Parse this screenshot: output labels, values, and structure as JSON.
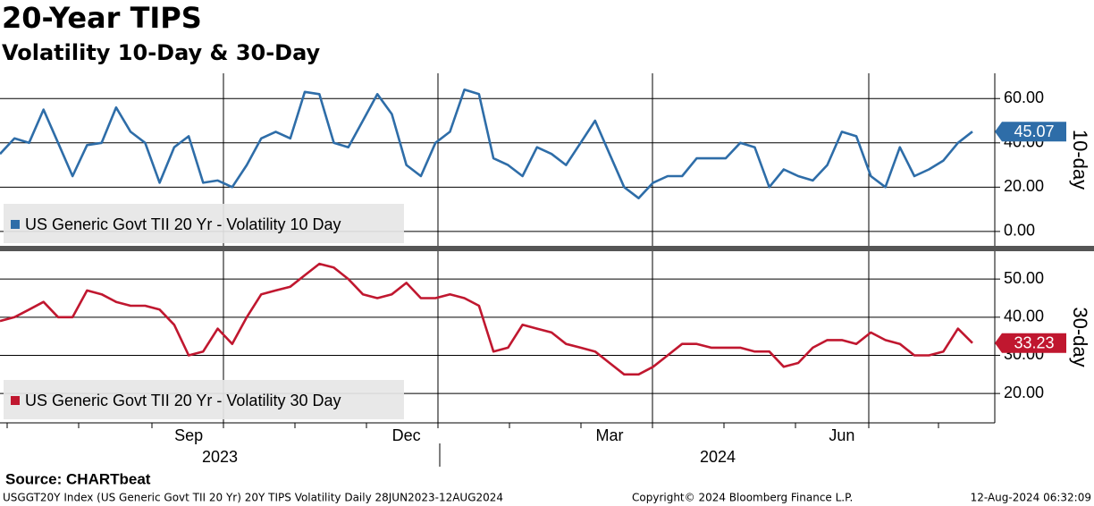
{
  "header": {
    "title": "20-Year TIPS",
    "subtitle": "Volatility 10-Day & 30-Day"
  },
  "chart_data": [
    {
      "type": "line",
      "y_label": "10-day",
      "series": [
        {
          "name": "US Generic Govt TII 20 Yr - Volatility 10 Day",
          "color": "#2e6da8",
          "values": [
            35,
            42,
            40,
            55,
            40,
            25,
            39,
            40,
            56,
            45,
            40,
            22,
            38,
            43,
            22,
            23,
            20,
            30,
            42,
            45,
            42,
            63,
            62,
            40,
            38,
            50,
            62,
            53,
            30,
            25,
            40,
            45,
            64,
            62,
            33,
            30,
            25,
            38,
            35,
            30,
            40,
            50,
            35,
            20,
            15,
            22,
            25,
            25,
            33,
            33,
            33,
            40,
            38,
            20,
            28,
            25,
            23,
            30,
            45,
            43,
            25,
            20,
            38,
            25,
            28,
            32,
            40,
            45.07
          ]
        }
      ],
      "ylim": [
        -6.5,
        71.4
      ],
      "yticks": [
        {
          "value": 0,
          "label": "0.00"
        },
        {
          "value": 20,
          "label": "20.00"
        },
        {
          "value": 40,
          "label": "40.00"
        },
        {
          "value": 60,
          "label": "60.00"
        }
      ],
      "grid": true
    },
    {
      "type": "line",
      "y_label": "30-day",
      "series": [
        {
          "name": "US Generic Govt TII 20 Yr - Volatility 30 Day",
          "color": "#c0172f",
          "values": [
            39,
            40,
            42,
            44,
            40,
            40,
            47,
            46,
            44,
            43,
            43,
            42,
            38,
            30,
            31,
            37,
            33,
            40,
            46,
            47,
            48,
            51,
            54,
            53,
            50,
            46,
            45,
            46,
            49,
            45,
            45,
            46,
            45,
            43,
            31,
            32,
            38,
            37,
            36,
            33,
            32,
            31,
            28,
            25,
            25,
            27,
            30,
            33,
            33,
            32,
            32,
            32,
            31,
            31,
            27,
            28,
            32,
            34,
            34,
            33,
            36,
            34,
            33,
            30,
            30,
            31,
            37,
            33.23
          ]
        }
      ],
      "ylim": [
        12.3,
        57.3
      ],
      "yticks": [
        {
          "value": 20,
          "label": "20.00"
        },
        {
          "value": 30,
          "label": "30.00"
        },
        {
          "value": 40,
          "label": "40.00"
        },
        {
          "value": 50,
          "label": "50.00"
        }
      ],
      "grid": true,
      "categories": [
        null,
        null,
        null,
        null,
        null,
        null,
        null,
        null,
        null,
        null,
        null,
        null,
        null,
        "Sep",
        null,
        null,
        null,
        null,
        null,
        null,
        null,
        null,
        null,
        null,
        null,
        null,
        null,
        null,
        "Dec",
        null,
        null,
        null,
        null,
        null,
        null,
        null,
        null,
        null,
        null,
        null,
        null,
        null,
        "Mar",
        null,
        null,
        null,
        null,
        null,
        null,
        null,
        null,
        null,
        null,
        null,
        null,
        null,
        null,
        null,
        "Jun",
        null,
        null,
        null,
        null,
        null,
        null,
        null,
        null,
        null
      ],
      "years": [
        "2023",
        "2024"
      ]
    }
  ],
  "footer": {
    "source": "Source: CHARTbeat",
    "description": "USGGT20Y Index (US Generic Govt TII 20 Yr) 20Y TIPS Volatility  Daily 28JUN2023-12AUG2024",
    "copyright": "Copyright© 2024 Bloomberg Finance L.P.",
    "timestamp": "12-Aug-2024 06:32:09"
  }
}
